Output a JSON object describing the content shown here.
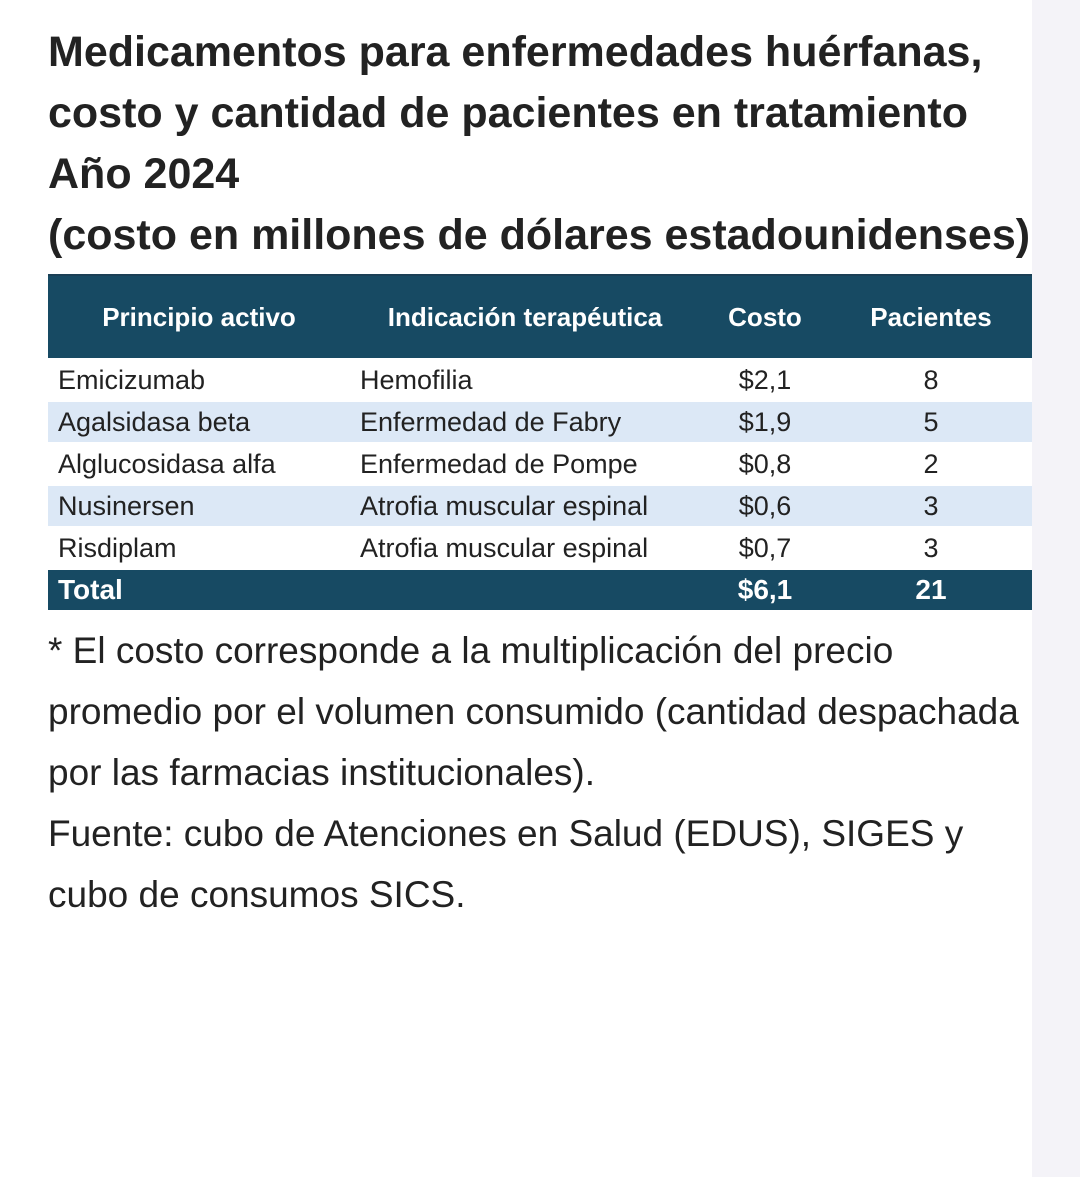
{
  "header": {
    "title": "Medicamentos para enfermedades huérfanas, costo y cantidad de pacientes en tratamiento",
    "year": "Año 2024",
    "unit_note": "(costo en millones de dólares estadounidenses)"
  },
  "table": {
    "columns": [
      "Principio activo",
      "Indicación terapéutica",
      "Costo",
      "Pacientes"
    ],
    "rows": [
      [
        "Emicizumab",
        "Hemofilia",
        "$2,1",
        "8"
      ],
      [
        "Agalsidasa beta",
        "Enfermedad de Fabry",
        "$1,9",
        "5"
      ],
      [
        "Alglucosidasa alfa",
        "Enfermedad de Pompe",
        "$0,8",
        "2"
      ],
      [
        "Nusinersen",
        "Atrofia muscular espinal",
        "$0,6",
        "3"
      ],
      [
        "Risdiplam",
        "Atrofia muscular espinal",
        "$0,7",
        "3"
      ]
    ],
    "total": [
      "Total",
      "",
      "$6,1",
      "21"
    ]
  },
  "footer": {
    "note": "* El costo corresponde a la multiplicación del precio promedio por el volumen consumido (cantidad despachada por las farmacias institucionales).",
    "source": "Fuente: cubo de Atenciones en Salud (EDUS), SIGES y cubo de consumos SICS."
  }
}
